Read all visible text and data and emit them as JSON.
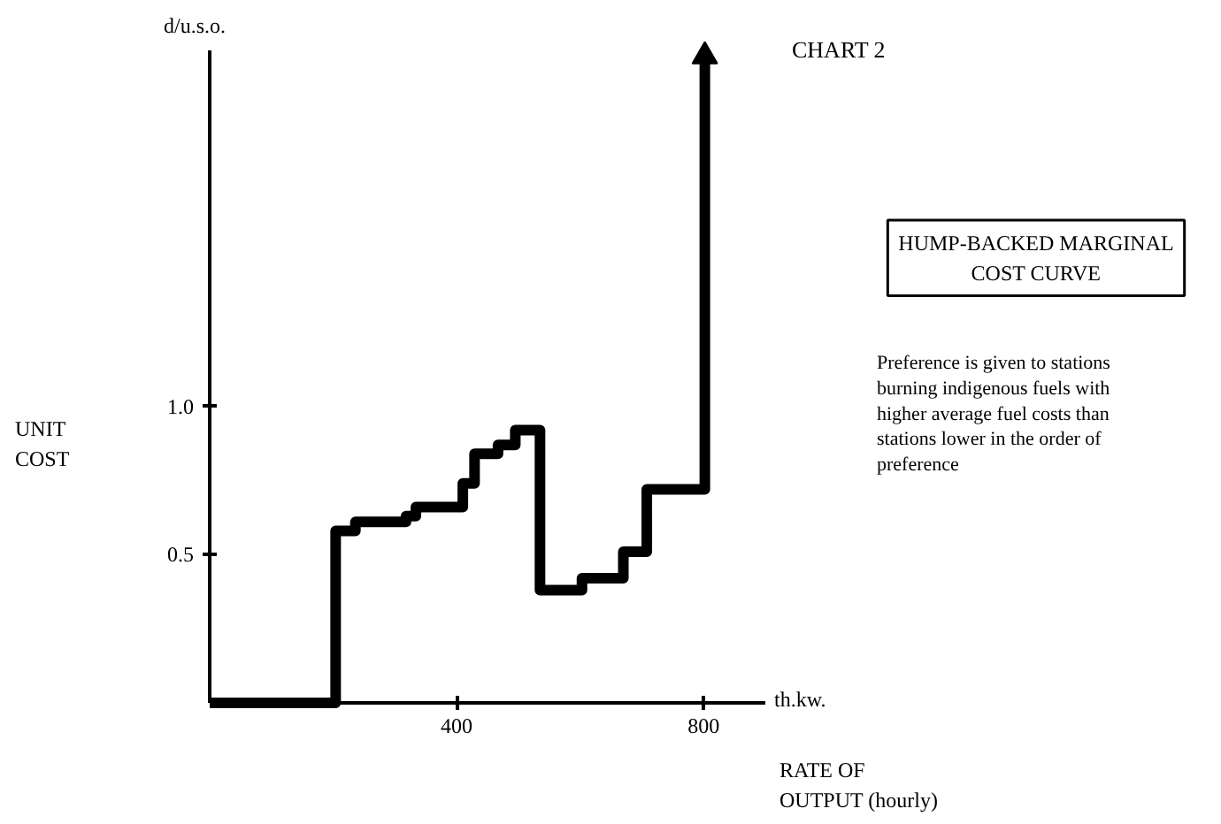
{
  "chart_data": {
    "type": "step",
    "title": "CHART 2",
    "subtitle": "HUMP-BACKED MARGINAL COST CURVE",
    "ylabel": "UNIT COST",
    "xlabel": "RATE OF OUTPUT (hourly)",
    "annotations": [
      "d/u.s.o.",
      "th.kw.",
      "Preference is given to stations burning indigenous fuels with higher average fuel costs than stations lower in the order of preference"
    ],
    "x": [
      0,
      204,
      236,
      318,
      334,
      410,
      429,
      467,
      495,
      535,
      603,
      670,
      708,
      802
    ],
    "series": [
      {
        "color": "#000000",
        "values": [
          0,
          0.58,
          0.61,
          0.63,
          0.66,
          0.74,
          0.84,
          0.87,
          0.92,
          0.38,
          0.42,
          0.51,
          0.72,
          2.18
        ]
      }
    ],
    "xlim": [
      0,
      900
    ],
    "ylim": [
      0,
      2.2
    ],
    "xticks": [
      400,
      800
    ],
    "yticks": [
      0.5,
      {
        "value": 1.0,
        "label": "1.0"
      }
    ],
    "grid": false,
    "marker": "none",
    "line_style": "solid"
  }
}
